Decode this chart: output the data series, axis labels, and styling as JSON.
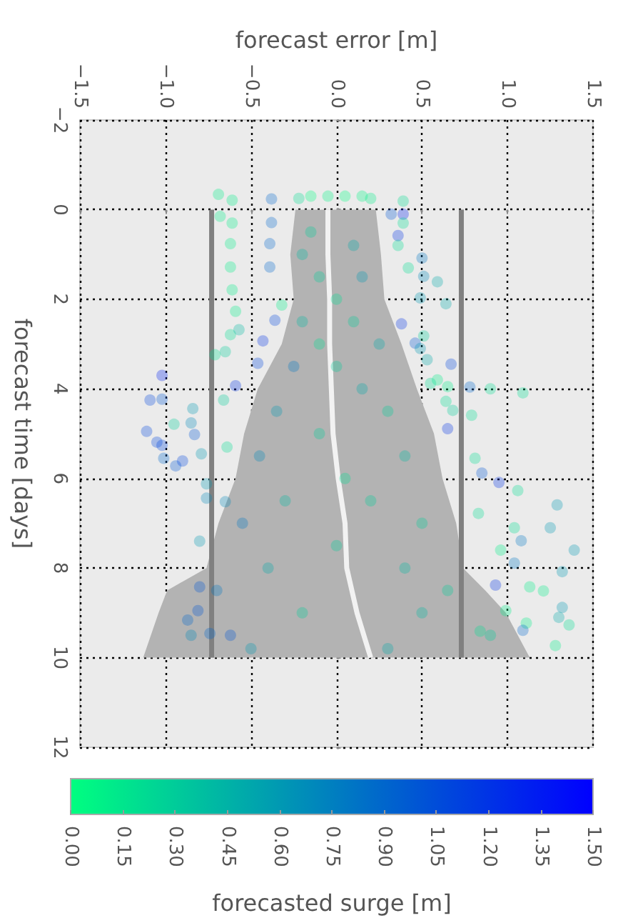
{
  "chart_data": {
    "type": "scatter",
    "xlabel": "forecast error [m]",
    "ylabel": "forecast time [days]",
    "clabel": "forecasted surge [m]",
    "xlim": [
      -1.5,
      1.5
    ],
    "xticks": [
      {
        "value": -1.5,
        "label": "−1.5"
      },
      {
        "value": -1,
        "label": "−1.0"
      },
      {
        "value": -0.5,
        "label": "−0.5"
      },
      {
        "value": 0,
        "label": "0.0"
      },
      0.5,
      {
        "value": 1,
        "label": "1.0"
      },
      1.5
    ],
    "ylim": [
      12,
      -2
    ],
    "yticks": [
      {
        "value": -2,
        "label": "−2"
      },
      0,
      2,
      4,
      6,
      8,
      10,
      12
    ],
    "clim": [
      0,
      1.5
    ],
    "cticks": [
      {
        "value": 0,
        "label": "0.00"
      },
      0.15,
      {
        "value": 0.3,
        "label": "0.30"
      },
      0.45,
      {
        "value": 0.6,
        "label": "0.60"
      },
      0.75,
      {
        "value": 0.9,
        "label": "0.90"
      },
      1.05,
      {
        "value": 1.2,
        "label": "1.20"
      },
      1.35,
      {
        "value": 1.5,
        "label": "1.50"
      }
    ],
    "grid": true,
    "series": [
      {
        "type": "area",
        "color": "#b3b3b3",
        "x": [
          -0.24,
          -0.27,
          -0.25,
          -0.32,
          -0.46,
          -0.54,
          -0.59,
          -0.69,
          -0.76,
          -0.99,
          -1.04,
          -1.13,
          1.13,
          0.99,
          0.87,
          0.74,
          0.7,
          0.62,
          0.57,
          0.47,
          0.38,
          0.28,
          0.26,
          0.23
        ],
        "values": [
          0,
          1,
          2,
          3,
          4,
          5,
          6,
          7,
          8,
          8.5,
          9,
          10,
          10,
          9,
          8.5,
          8,
          7,
          6,
          5,
          4,
          3,
          2,
          1,
          0
        ]
      },
      {
        "type": "line",
        "color": "#f2f2f2",
        "marker": "none",
        "x": [
          -0.05,
          -0.05,
          -0.04,
          -0.04,
          -0.03,
          -0.02,
          0.01,
          0.05,
          0.06,
          0.09,
          0.12,
          0.2
        ],
        "values": [
          0,
          1,
          2,
          3,
          4,
          5,
          6,
          7,
          8,
          8.5,
          9,
          10
        ]
      },
      {
        "type": "line",
        "color": "#808080",
        "marker": "none",
        "x": [
          -0.73,
          -0.73
        ],
        "values": [
          0,
          10
        ]
      },
      {
        "type": "line",
        "color": "#808080",
        "marker": "none",
        "x": [
          0.73,
          0.73
        ],
        "values": [
          0,
          10
        ]
      },
      {
        "marker": "circle",
        "values": [
          -0.34,
          -0.21,
          0.15,
          0.3,
          0.76,
          1.28,
          1.79,
          2.27,
          2.79,
          -0.24,
          0.29,
          0.76,
          1.28,
          2.13,
          2.47,
          2.93,
          2.68,
          3.17,
          3.24,
          3.43,
          3.7,
          4.25,
          4.23,
          4.44,
          4.79,
          4.76,
          4.25,
          3.93,
          4.95,
          5.19,
          5.26,
          5.72,
          5.61,
          5.55,
          5.02,
          5.45,
          6.12,
          6.44,
          7.4,
          5.3,
          6.52,
          9.16,
          8.95,
          8.42,
          9.46,
          9.5,
          -0.19,
          0.1,
          0.1,
          0.3,
          0.58,
          0.8,
          1.08,
          1.3,
          1.49,
          1.61,
          2.1,
          1.97,
          2.55,
          2.82,
          2.98,
          3.1,
          3.45,
          3.35,
          3.8,
          3.88,
          3.95,
          3.96,
          4.0,
          4.09,
          4.28,
          4.48,
          4.59,
          4.89,
          5.55,
          5.88,
          6.09,
          6.27,
          6.78,
          7.1,
          6.59,
          7.1,
          7.39,
          7.6,
          7.6,
          7.89,
          8.08,
          8.38,
          8.42,
          8.51,
          8.88,
          9.1,
          9.27,
          9.23,
          9.39,
          9.73,
          8.95,
          9.41,
          -0.3,
          -0.3,
          -0.3,
          -0.3,
          -0.25,
          -0.25,
          0.5,
          0.8,
          1.5,
          1.5,
          2.5,
          2.5,
          3,
          3.5,
          3.5,
          4.5,
          4.5,
          5,
          5.5,
          5.5,
          6.5,
          6.5,
          7,
          7,
          7.5,
          8,
          8,
          8.5,
          8.5,
          9,
          9,
          9.5,
          9.5,
          9.8,
          9.8,
          6,
          3,
          2,
          1,
          4
        ],
        "x": [
          -0.69,
          -0.61,
          -0.68,
          -0.61,
          -0.62,
          -0.62,
          -0.61,
          -0.59,
          -0.62,
          -0.38,
          -0.38,
          -0.39,
          -0.39,
          -0.32,
          -0.36,
          -0.43,
          -0.57,
          -0.65,
          -0.71,
          -0.46,
          -1.02,
          -1.09,
          -1.02,
          -0.84,
          -0.95,
          -0.85,
          -0.66,
          -0.59,
          -1.11,
          -1.05,
          -1.02,
          -0.94,
          -0.9,
          -1.01,
          -0.83,
          -0.79,
          -0.76,
          -0.76,
          -0.8,
          -0.64,
          -0.65,
          -0.87,
          -0.81,
          -0.8,
          -0.74,
          -0.62,
          0.39,
          0.32,
          0.39,
          0.39,
          0.36,
          0.36,
          0.5,
          0.42,
          0.51,
          0.59,
          0.64,
          0.49,
          0.38,
          0.51,
          0.46,
          0.49,
          0.67,
          0.53,
          0.59,
          0.55,
          0.65,
          0.78,
          0.9,
          1.09,
          0.64,
          0.68,
          0.79,
          0.65,
          0.81,
          0.85,
          0.95,
          1.06,
          0.83,
          1.04,
          1.29,
          1.25,
          1.08,
          1.39,
          0.96,
          1.04,
          1.32,
          0.93,
          1.13,
          1.21,
          1.32,
          1.3,
          1.36,
          1.11,
          1.09,
          1.28,
          0.99,
          0.84,
          -0.15,
          -0.05,
          0.05,
          0.15,
          -0.22,
          0.2,
          -0.15,
          0.1,
          -0.1,
          0.15,
          -0.2,
          0.1,
          0.25,
          -0.25,
          0.0,
          -0.35,
          0.3,
          -0.1,
          0.4,
          -0.45,
          0.2,
          -0.3,
          0.5,
          -0.55,
          0.0,
          -0.4,
          0.4,
          -0.7,
          0.65,
          -0.2,
          0.5,
          -0.85,
          0.9,
          0.3,
          -0.5,
          0.05,
          -0.1,
          0.0,
          -0.2,
          0.15
        ],
        "colors": [
          "#00ee88",
          "#00ee88",
          "#00ee88",
          "#00ee88",
          "#00ee88",
          "#00ee88",
          "#00ee88",
          "#00ee88",
          "#00dd91",
          "#0066cc",
          "#0066cc",
          "#0066cc",
          "#0066cc",
          "#00ee88",
          "#0044dd",
          "#0033e6",
          "#00bba2",
          "#00cc99",
          "#00dd91",
          "#0044dd",
          "#0022ee",
          "#0044dd",
          "#0055d5",
          "#0099b3",
          "#00cc99",
          "#0088bb",
          "#00cc99",
          "#0033e6",
          "#0044dd",
          "#0044dd",
          "#0044dd",
          "#0055d5",
          "#0044dd",
          "#0066cc",
          "#0055d5",
          "#0099b3",
          "#0099b3",
          "#0088bb",
          "#0099b3",
          "#00dd91",
          "#0088bb",
          "#0066cc",
          "#0055d5",
          "#0055d5",
          "#0066cc",
          "#0055d5",
          "#00dd91",
          "#0055d5",
          "#0022ee",
          "#00dd91",
          "#0033e6",
          "#00dd91",
          "#0077c4",
          "#00dd91",
          "#0088bb",
          "#00aaaa",
          "#00aaaa",
          "#0099b3",
          "#0033e6",
          "#00cc99",
          "#0055d5",
          "#0099b3",
          "#0044dd",
          "#00aaaa",
          "#00ee88",
          "#00dd91",
          "#00ee88",
          "#0066cc",
          "#00dd91",
          "#00dd91",
          "#00dd91",
          "#00cc99",
          "#00dd91",
          "#0033e6",
          "#00dd91",
          "#0055d5",
          "#0033e6",
          "#00dd91",
          "#00dd91",
          "#00dd91",
          "#0099b3",
          "#0099b3",
          "#0077c4",
          "#0099b3",
          "#00ee88",
          "#0077c4",
          "#0099b3",
          "#0033e6",
          "#00ee88",
          "#00ee88",
          "#0099b3",
          "#00aaaa",
          "#00dd91",
          "#00ee88",
          "#0066cc",
          "#00ee88",
          "#00ee88",
          "#00dd91",
          "#00ff80",
          "#00f684",
          "#00ff80",
          "#00f684",
          "#00dd91",
          "#00ee88",
          "#00cc99",
          "#00aaaa",
          "#00cc99",
          "#0099b3",
          "#00bba2",
          "#00cc99",
          "#00aaaa",
          "#0077c4",
          "#00cc99",
          "#0099b3",
          "#00cc99",
          "#00cc99",
          "#00bba2",
          "#0088bb",
          "#00cc99",
          "#00bba2",
          "#00cc99",
          "#0077c4",
          "#00cc99",
          "#00aaaa",
          "#00bba2",
          "#0077c4",
          "#00cc99",
          "#00cc99",
          "#00bba2",
          "#0088bb",
          "#00cc99",
          "#00aaaa",
          "#0099b3",
          "#00dd91",
          "#00dd91",
          "#00dd91",
          "#00bba2",
          "#00aaaa"
        ]
      }
    ]
  }
}
